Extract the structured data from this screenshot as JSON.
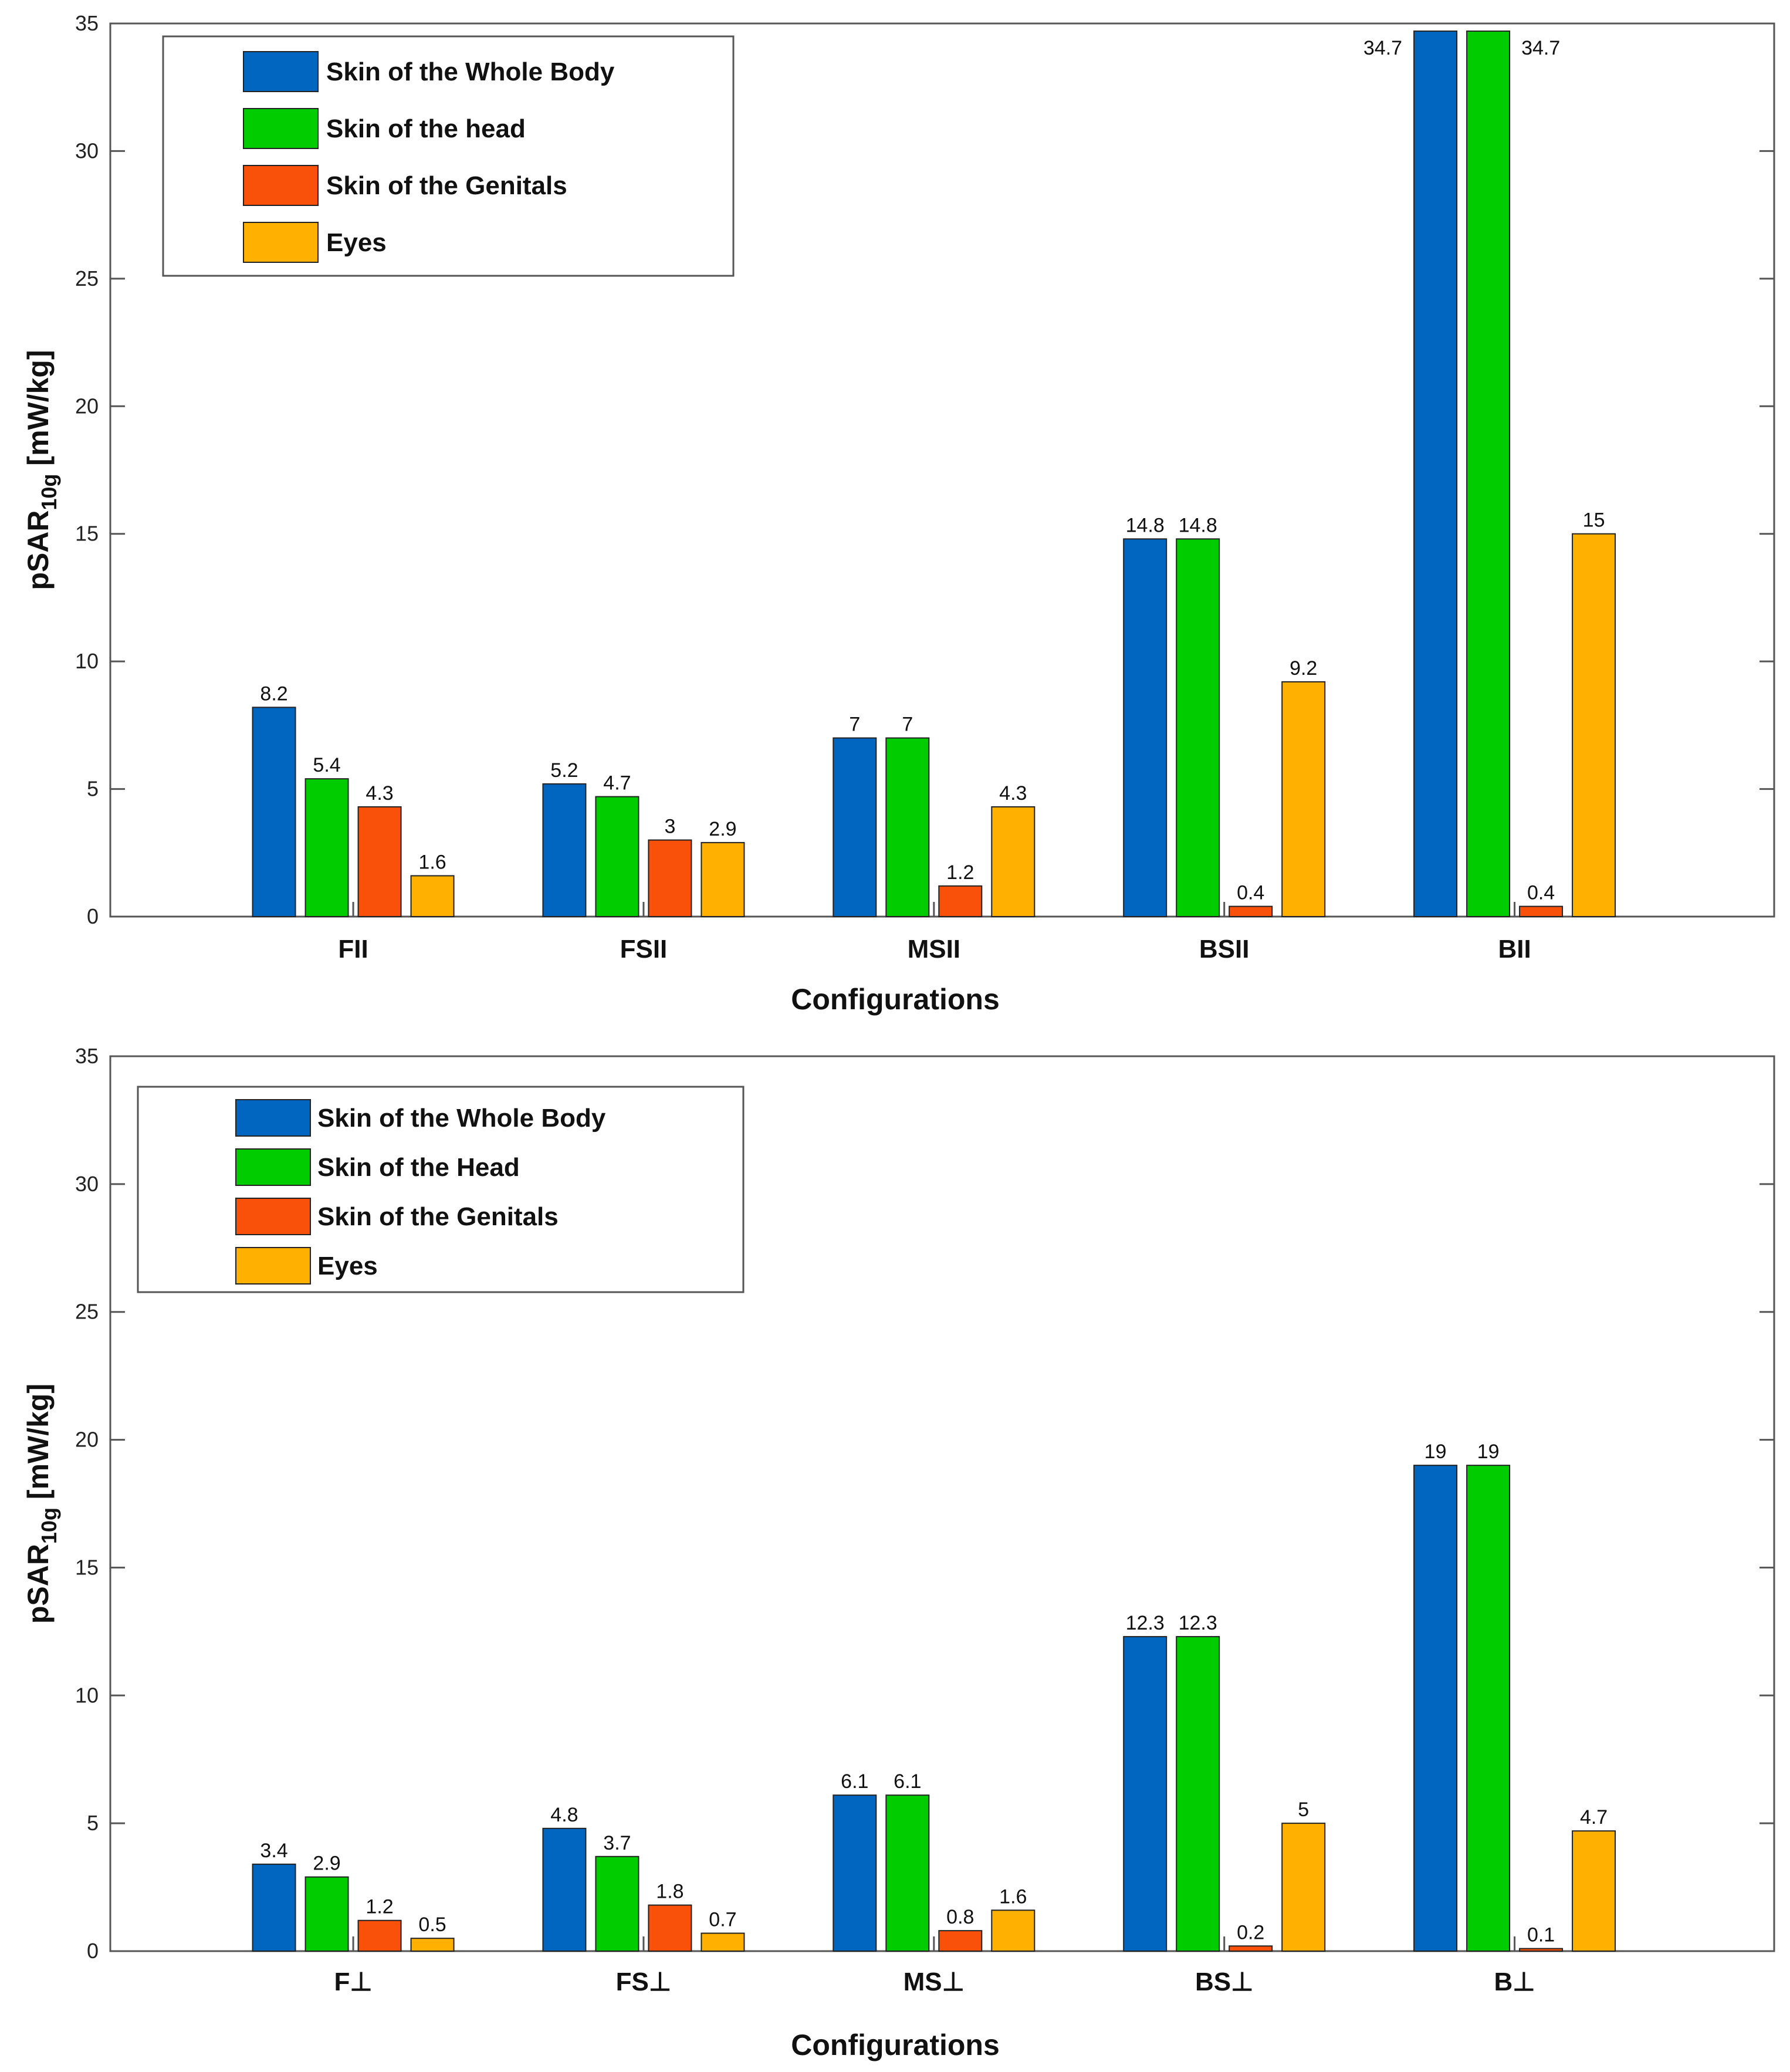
{
  "chart_data": [
    {
      "type": "bar",
      "ylabel_main": "pSAR",
      "ylabel_sub": "10g",
      "ylabel_unit": "[mW/kg]",
      "xlabel": "Configurations",
      "ylim": [
        0,
        35
      ],
      "yticks": [
        0,
        5,
        10,
        15,
        20,
        25,
        30,
        35
      ],
      "categories": [
        "FII",
        "FSII",
        "MSII",
        "BSII",
        "BII"
      ],
      "series": [
        {
          "name": "Skin of the Whole Body",
          "color": "#0066C0",
          "values": [
            8.2,
            5.2,
            7,
            14.8,
            34.7
          ]
        },
        {
          "name": "Skin of the head",
          "color": "#00CC00",
          "values": [
            5.4,
            4.7,
            7,
            14.8,
            34.7
          ]
        },
        {
          "name": "Skin of the Genitals",
          "color": "#F9510A",
          "values": [
            4.3,
            3,
            1.2,
            0.4,
            0.4
          ]
        },
        {
          "name": "Eyes",
          "color": "#FFB000",
          "values": [
            1.6,
            2.9,
            4.3,
            9.2,
            15
          ]
        }
      ],
      "legend": "top-left"
    },
    {
      "type": "bar",
      "ylabel_main": "pSAR",
      "ylabel_sub": "10g",
      "ylabel_unit": "[mW/kg]",
      "xlabel": "Configurations",
      "ylim": [
        0,
        35
      ],
      "yticks": [
        0,
        5,
        10,
        15,
        20,
        25,
        30,
        35
      ],
      "categories": [
        "F⊥",
        "FS⊥",
        "MS⊥",
        "BS⊥",
        "B⊥"
      ],
      "series": [
        {
          "name": "Skin of the Whole Body",
          "color": "#0066C0",
          "values": [
            3.4,
            4.8,
            6.1,
            12.3,
            19
          ]
        },
        {
          "name": "Skin of the Head",
          "color": "#00CC00",
          "values": [
            2.9,
            3.7,
            6.1,
            12.3,
            19
          ]
        },
        {
          "name": "Skin of the Genitals",
          "color": "#F9510A",
          "values": [
            1.2,
            1.8,
            0.8,
            0.2,
            0.1
          ]
        },
        {
          "name": "Eyes",
          "color": "#FFB000",
          "values": [
            0.5,
            0.7,
            1.6,
            5,
            4.7
          ]
        }
      ],
      "legend": "top-left"
    }
  ]
}
